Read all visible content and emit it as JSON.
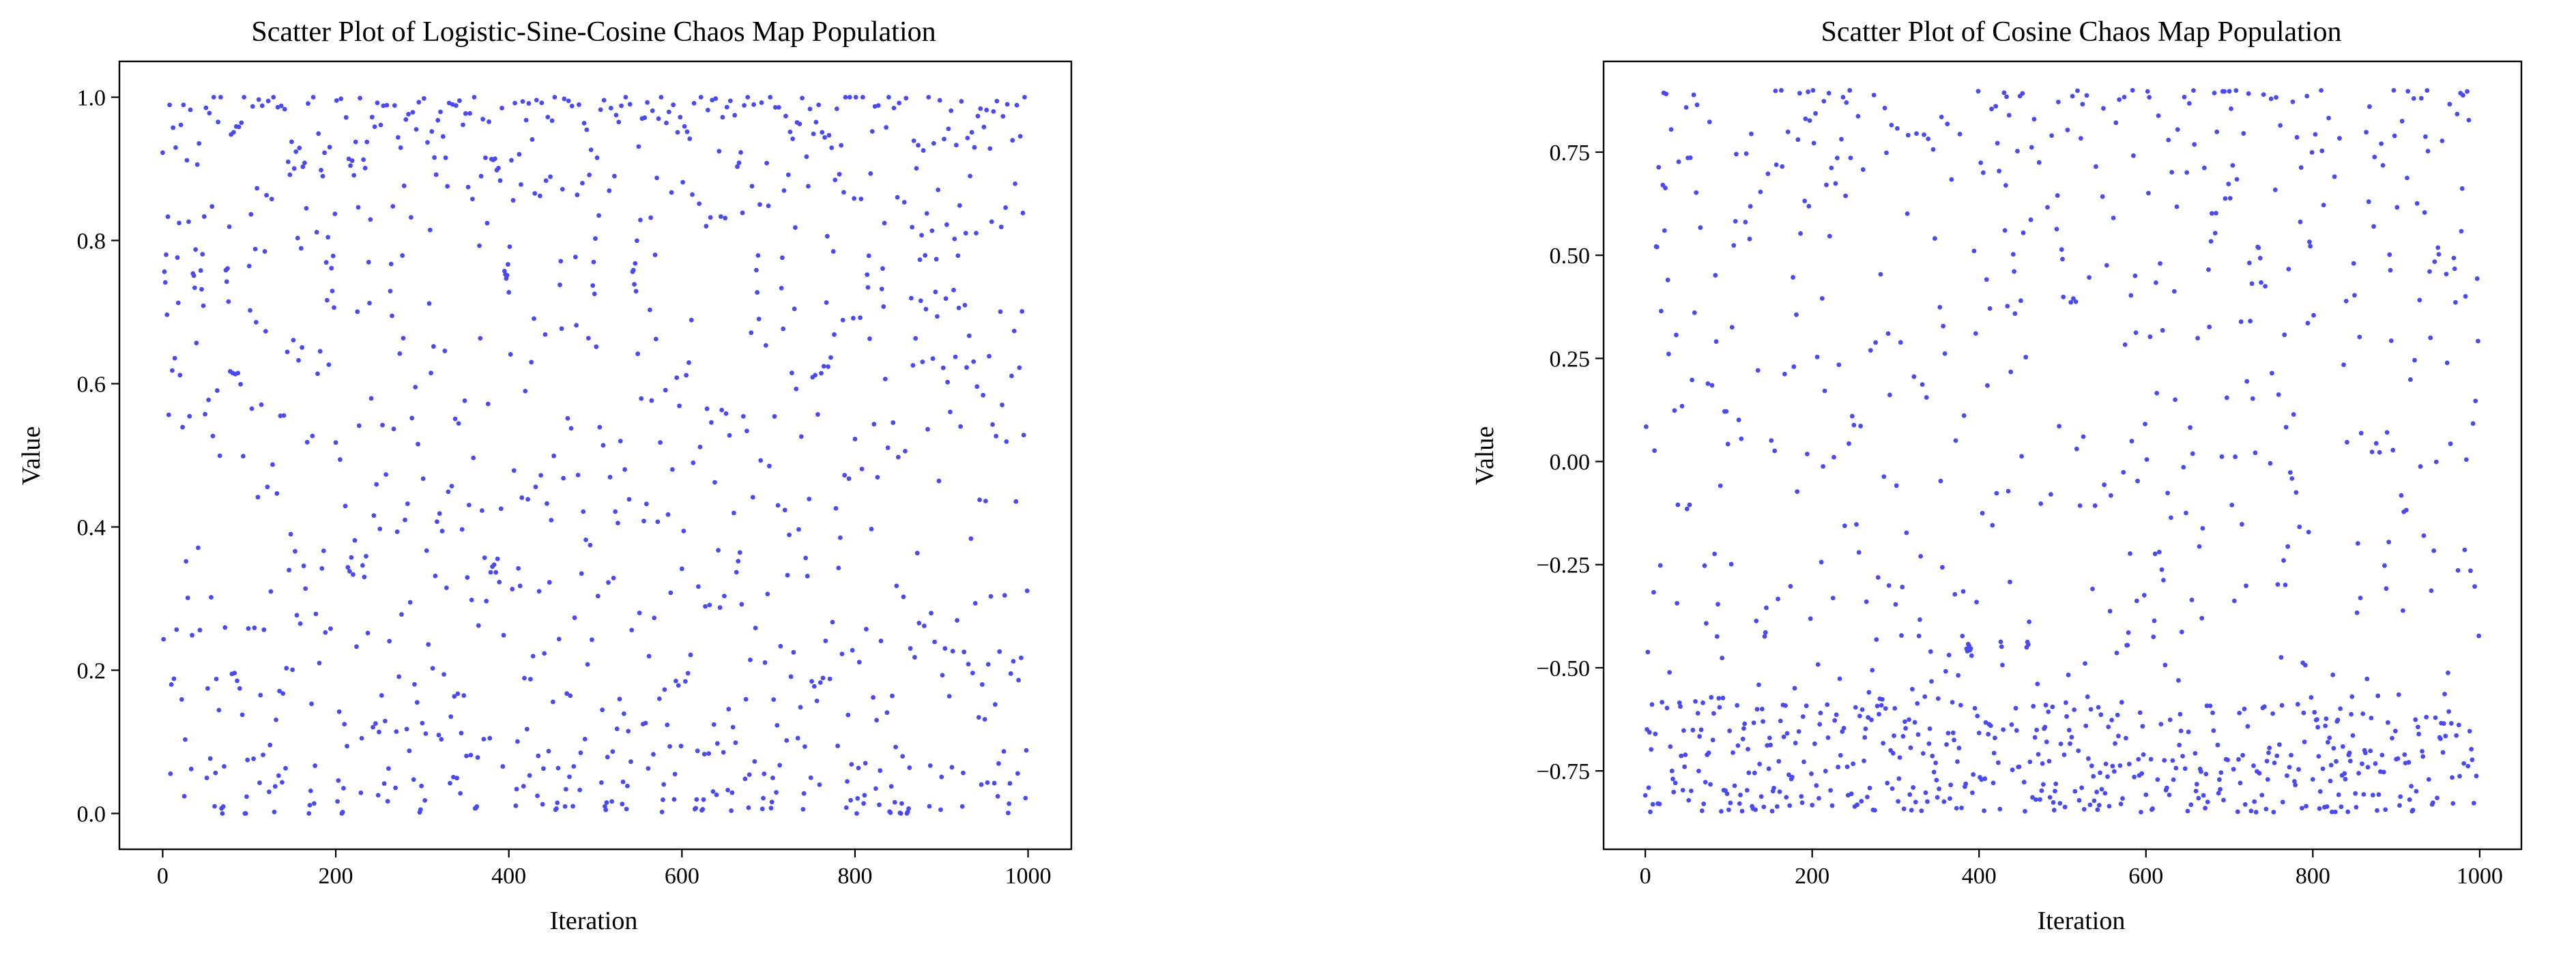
{
  "chart_data": [
    {
      "type": "scatter",
      "title": "Scatter Plot of Logistic-Sine-Cosine Chaos Map Population",
      "xlabel": "Iteration",
      "ylabel": "Value",
      "xlim": [
        -50,
        1050
      ],
      "ylim": [
        -0.05,
        1.05
      ],
      "xticks": [
        0,
        200,
        400,
        600,
        800,
        1000
      ],
      "xtick_labels": [
        "0",
        "200",
        "400",
        "600",
        "800",
        "1000"
      ],
      "yticks": [
        0.0,
        0.2,
        0.4,
        0.6,
        0.8,
        1.0
      ],
      "ytick_labels": [
        "0.0",
        "0.2",
        "0.4",
        "0.6",
        "0.8",
        "1.0"
      ],
      "grid": false,
      "color": "#4a4af5",
      "n_points": 1000,
      "x": [
        0,
        1000
      ],
      "y_range": [
        0.0,
        1.0
      ],
      "points_note_only_in_script": false,
      "series": [
        {
          "x_step": 1,
          "y_min": 0.0,
          "y_max": 1.0,
          "distribution": "dense near 0 and 1"
        }
      ]
    },
    {
      "type": "scatter",
      "title": "Scatter Plot of Cosine Chaos Map Population",
      "xlabel": "Iteration",
      "ylabel": "Value",
      "xlim": [
        -50,
        1050
      ],
      "ylim": [
        -0.94,
        0.97
      ],
      "xticks": [
        0,
        200,
        400,
        600,
        800,
        1000
      ],
      "xtick_labels": [
        "0",
        "200",
        "400",
        "600",
        "800",
        "1000"
      ],
      "yticks": [
        -0.75,
        -0.5,
        -0.25,
        0.0,
        0.25,
        0.5,
        0.75
      ],
      "ytick_labels": [
        "−0.75",
        "−0.50",
        "−0.25",
        "0.00",
        "0.25",
        "0.50",
        "0.75"
      ],
      "grid": false,
      "color": "#4a4af5",
      "n_points": 1000,
      "x": [
        0,
        1000
      ],
      "y_range": [
        -0.85,
        0.9
      ],
      "series": [
        {
          "x_step": 1,
          "y_min": -0.85,
          "y_max": 0.9,
          "distribution": "dense near -0.85 to -0.6 and near 0.9"
        }
      ]
    }
  ]
}
